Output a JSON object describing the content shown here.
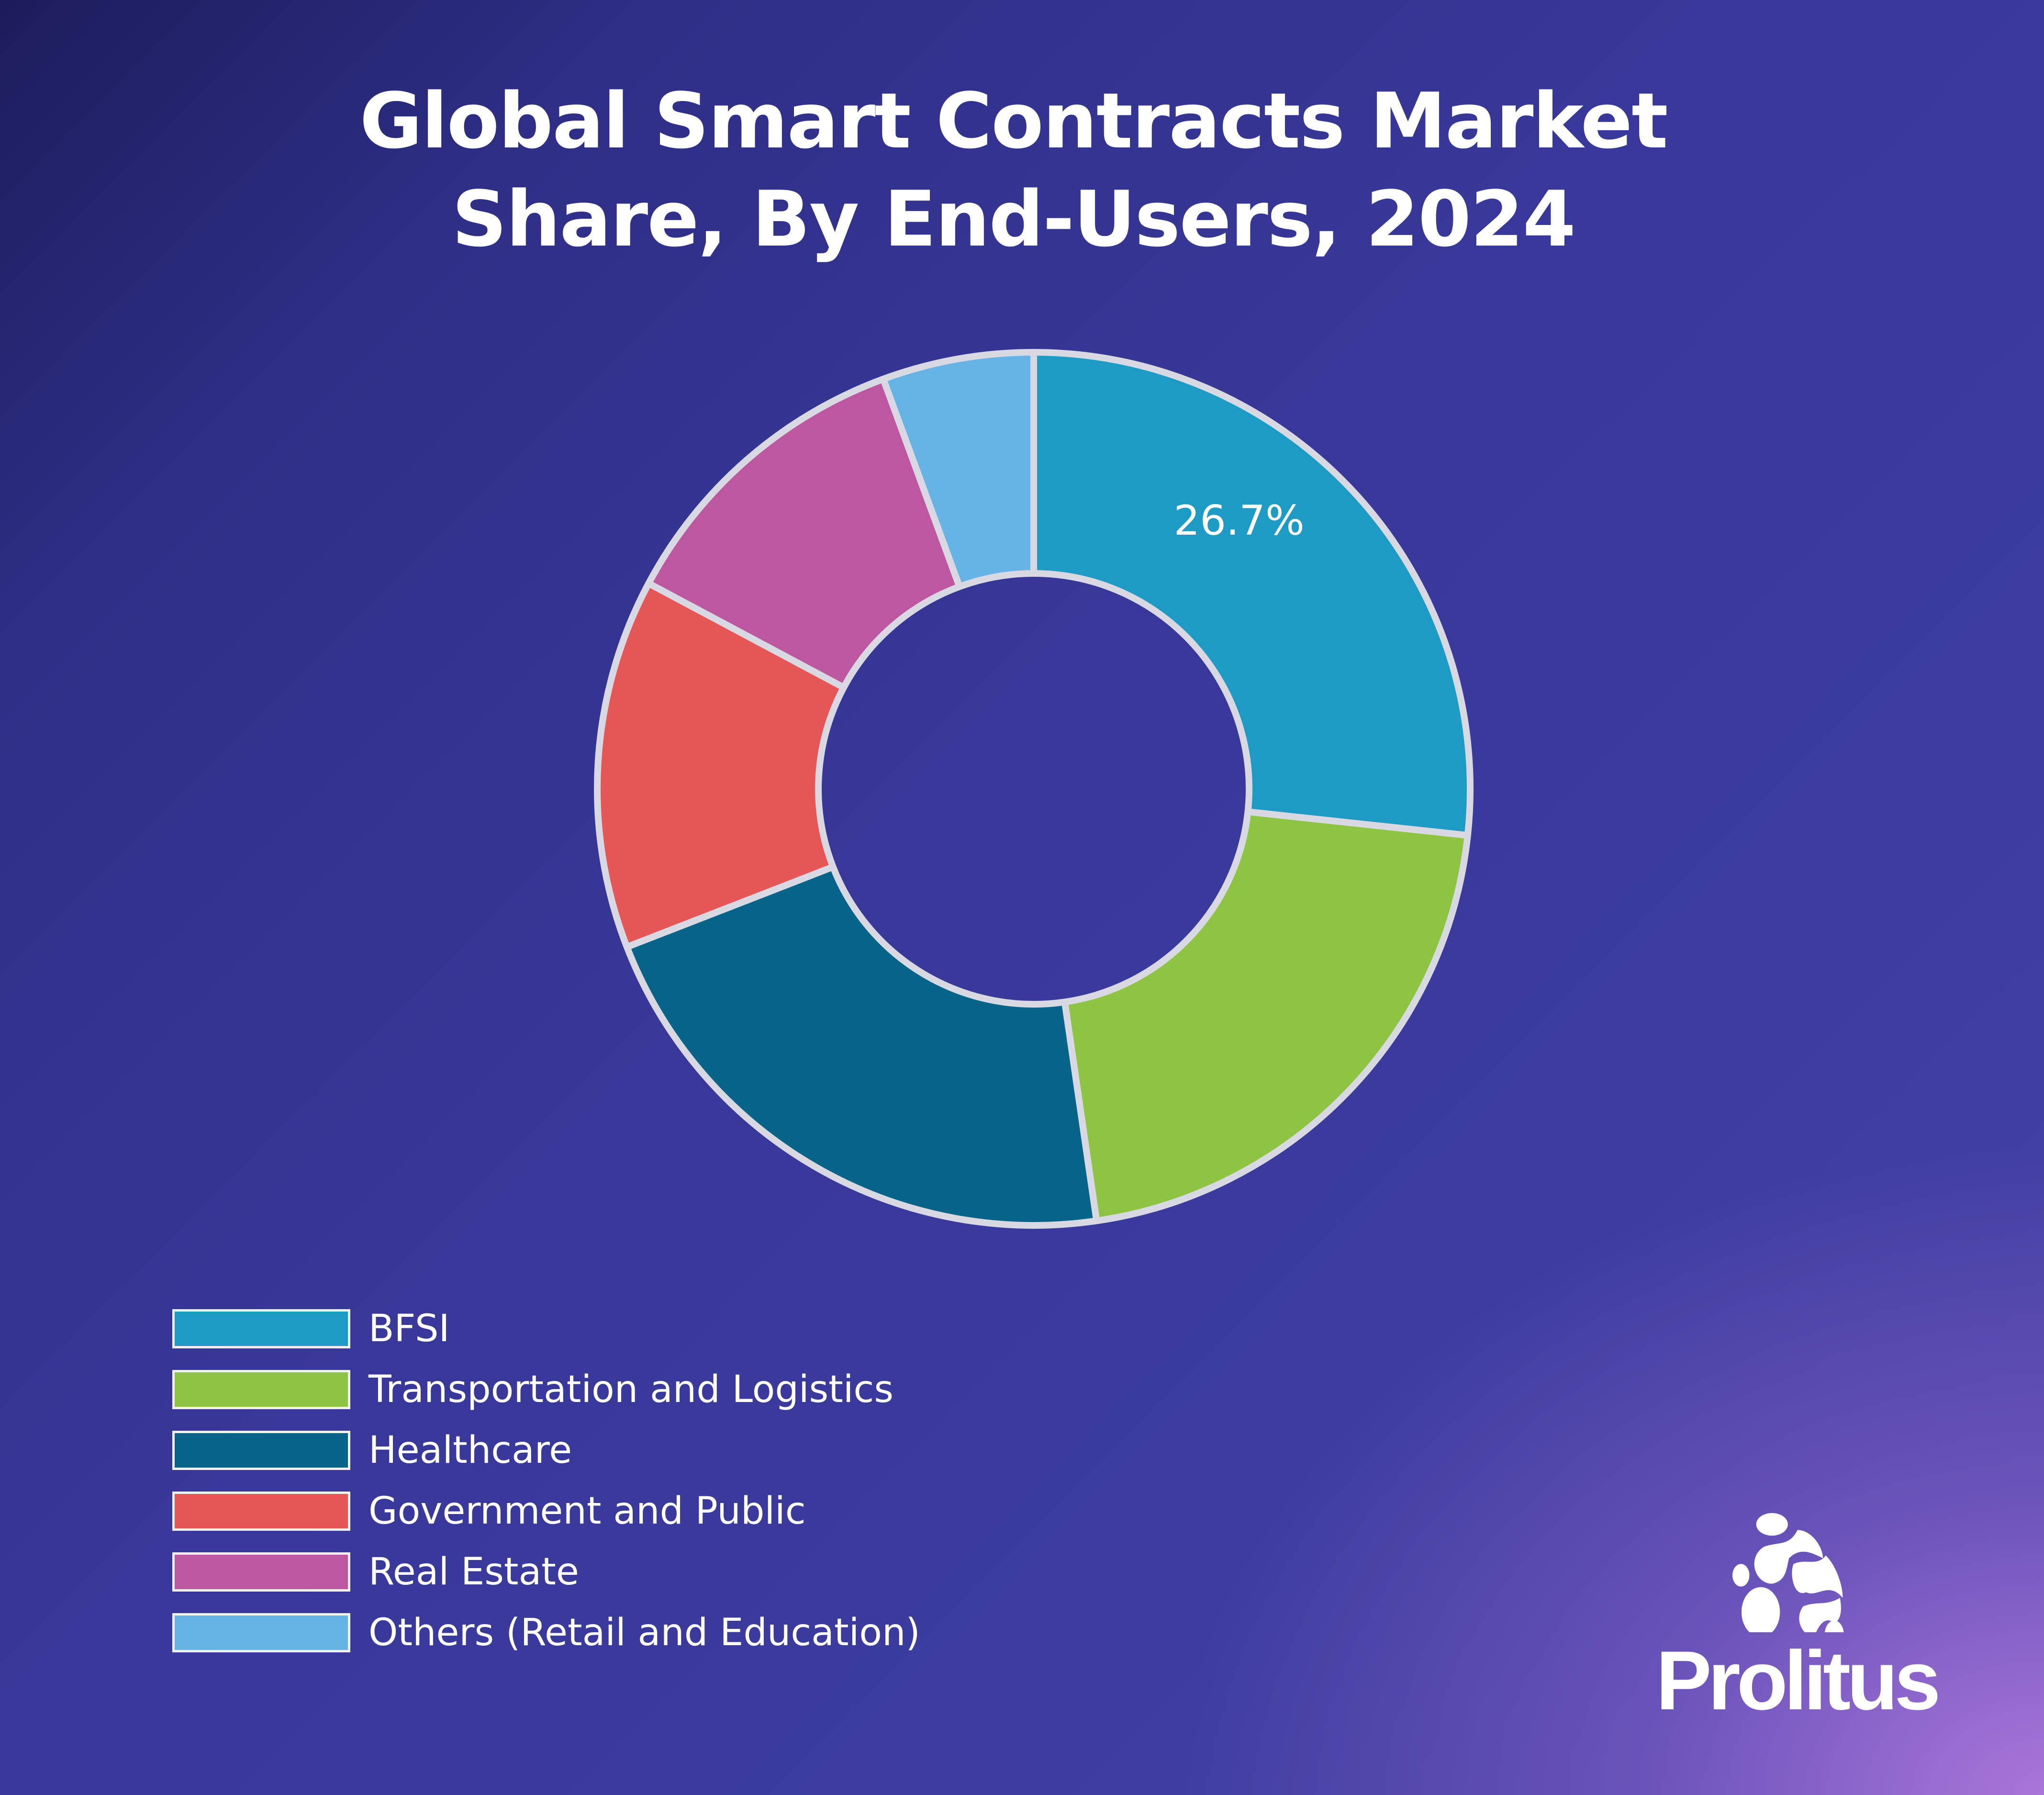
{
  "chart_data": {
    "type": "pie",
    "variant": "donut",
    "title": "Global Smart Contracts Market Share, By End-Users, 2024",
    "title_lines": [
      "Global Smart Contracts Market",
      "Share, By End-Users, 2024"
    ],
    "categories": [
      "BFSI",
      "Transportation and Logistics",
      "Healthcare",
      "Government and Public",
      "Real Estate",
      "Others (Retail and Education)"
    ],
    "values": [
      26.7,
      21.0,
      21.4,
      13.7,
      11.6,
      5.6
    ],
    "unit": "%",
    "colors": [
      "#1e9bc4",
      "#8dc441",
      "#066488",
      "#e55757",
      "#bd579f",
      "#66b3e5"
    ],
    "data_labels": [
      {
        "category": "BFSI",
        "text": "26.7%"
      }
    ],
    "legend_placement": "bottom-left",
    "start_angle": "12 o'clock, clockwise"
  },
  "brand": {
    "name": "Prolitus"
  }
}
